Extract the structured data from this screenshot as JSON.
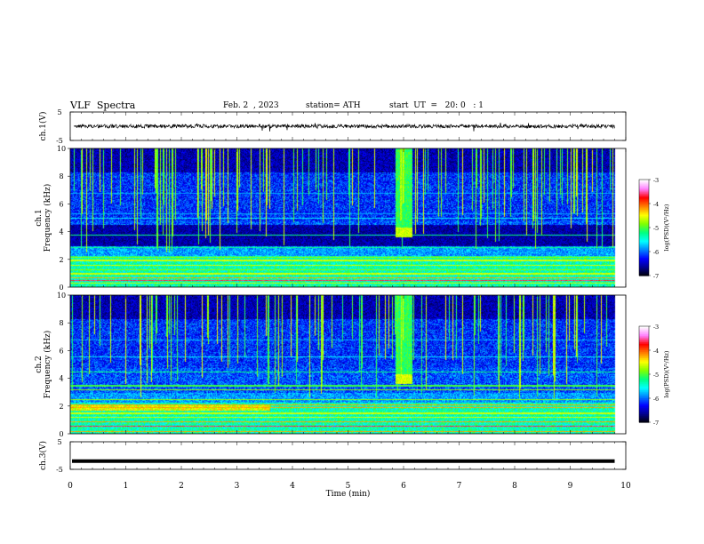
{
  "header": {
    "title": "VLF  Spectra",
    "date": "Feb. 2  , 2023",
    "station": "station= ATH",
    "start_ut": "start  UT  =   20: 0   : 1"
  },
  "chart_data": [
    {
      "type": "line",
      "panel": "ch1-waveform",
      "ylabel": "ch.1(V)",
      "ylim": [
        -5,
        5
      ],
      "y_ticks": [
        "5",
        "-5"
      ],
      "xlim": [
        0,
        10
      ],
      "trace_level": 0,
      "trace_color": "#000000"
    },
    {
      "type": "heatmap",
      "panel": "ch1-spectrogram",
      "ylabel": "ch.1\nFrequency  (kHz)",
      "ylabel_line1": "ch.1",
      "ylabel_line2": "Frequency  (kHz)",
      "ylim": [
        0,
        10
      ],
      "y_ticks": [
        "0",
        "2",
        "4",
        "6",
        "8",
        "10"
      ],
      "xlim": [
        0,
        10
      ],
      "data_end_min": 9.8,
      "bright_burst_min": [
        5.85,
        6.15
      ],
      "colorbar": {
        "label": "log(PSD)(V²/Hz)",
        "range": [
          -7,
          -3
        ],
        "ticks": [
          "-3",
          "-4",
          "-5",
          "-6",
          "-7"
        ]
      }
    },
    {
      "type": "heatmap",
      "panel": "ch2-spectrogram",
      "ylabel_line1": "ch.2",
      "ylabel_line2": "Frequency  (kHz)",
      "ylim": [
        0,
        10
      ],
      "y_ticks": [
        "0",
        "2",
        "4",
        "6",
        "8",
        "10"
      ],
      "xlim": [
        0,
        10
      ],
      "data_end_min": 9.8,
      "bright_burst_min": [
        5.85,
        6.15
      ],
      "colorbar": {
        "label": "log(PSD)(V²/Hz)",
        "range": [
          -7,
          -3
        ],
        "ticks": [
          "-3",
          "-4",
          "-5",
          "-6",
          "-7"
        ]
      }
    },
    {
      "type": "line",
      "panel": "ch3-waveform",
      "ylabel": "ch.3(V)",
      "ylim": [
        -5,
        5
      ],
      "y_ticks": [
        "5",
        "-5"
      ],
      "xlim": [
        0,
        10
      ],
      "trace_level": -2,
      "trace_color": "#000000"
    }
  ],
  "x_axis": {
    "label": "Time  (min)",
    "ticks": [
      "0",
      "1",
      "2",
      "3",
      "4",
      "5",
      "6",
      "7",
      "8",
      "9",
      "10"
    ]
  },
  "colormap": [
    "#000000",
    "#00008b",
    "#0000ff",
    "#0080ff",
    "#00ffff",
    "#00ff80",
    "#80ff00",
    "#ffff00",
    "#ff8000",
    "#ff0000",
    "#ff80ff",
    "#ffffff"
  ]
}
